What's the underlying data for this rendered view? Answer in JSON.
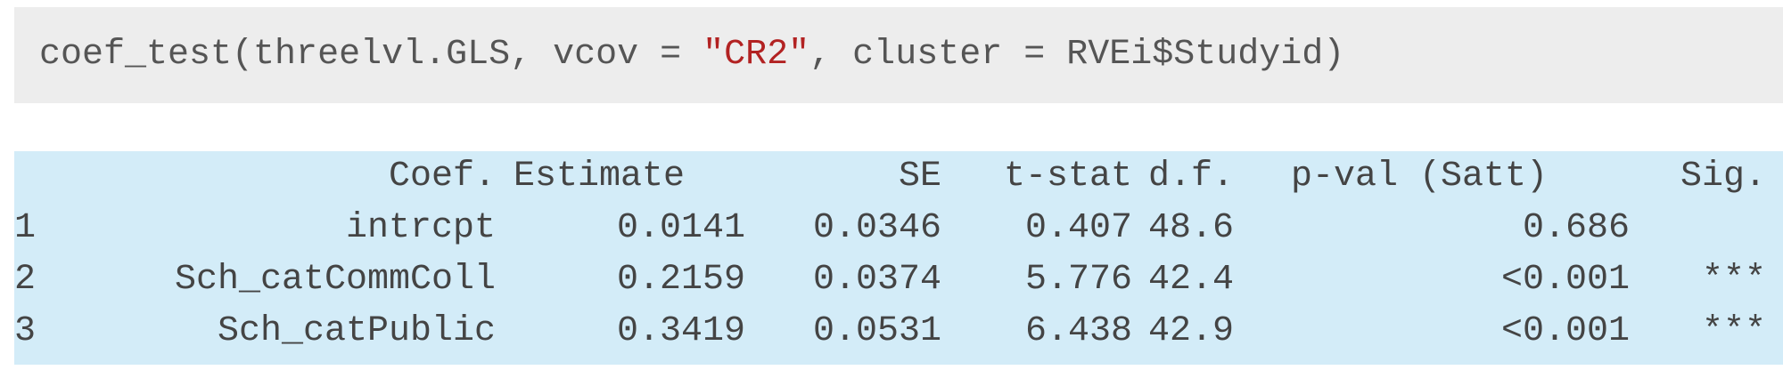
{
  "code": {
    "fn": "coef_test",
    "args_before_string": "(threelvl.GLS, vcov = ",
    "string_arg": "\"CR2\"",
    "args_after_string": ", cluster = RVEi$Studyid)"
  },
  "output": {
    "header": {
      "coef": "Coef.",
      "estimate": "Estimate",
      "se": "SE",
      "tstat": "t-stat",
      "df": "d.f.",
      "pval": "p-val (Satt)",
      "sig": "Sig."
    },
    "rows": [
      {
        "idx": "1",
        "coef": "intrcpt",
        "estimate": "0.0141",
        "se": "0.0346",
        "tstat": "0.407",
        "df": "48.6",
        "pval": "0.686",
        "sig": ""
      },
      {
        "idx": "2",
        "coef": "Sch_catCommColl",
        "estimate": "0.2159",
        "se": "0.0374",
        "tstat": "5.776",
        "df": "42.4",
        "pval": "<0.001",
        "sig": "***"
      },
      {
        "idx": "3",
        "coef": "Sch_catPublic",
        "estimate": "0.3419",
        "se": "0.0531",
        "tstat": "6.438",
        "df": "42.9",
        "pval": "<0.001",
        "sig": "***"
      }
    ]
  }
}
